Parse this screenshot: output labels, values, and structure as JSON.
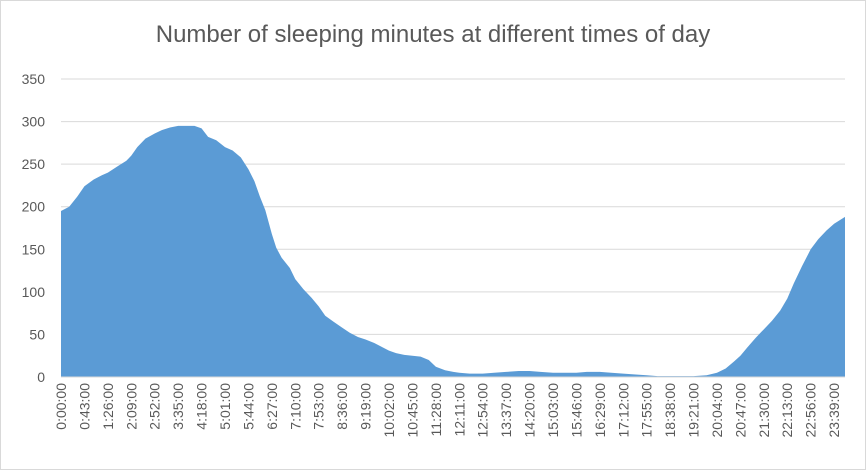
{
  "chart_data": {
    "type": "area",
    "title": "Number of sleeping minutes at different times of day",
    "xlabel": "",
    "ylabel": "",
    "ylim": [
      0,
      350
    ],
    "y_ticks": [
      "0",
      "50",
      "100",
      "150",
      "200",
      "250",
      "300",
      "350"
    ],
    "grid": true,
    "legend": "none",
    "color": "#5B9BD5",
    "x_tick_labels": [
      "0:00:00",
      "0:43:00",
      "1:26:00",
      "2:09:00",
      "2:52:00",
      "3:35:00",
      "4:18:00",
      "5:01:00",
      "5:44:00",
      "6:27:00",
      "7:10:00",
      "7:53:00",
      "8:36:00",
      "9:19:00",
      "10:02:00",
      "10:45:00",
      "11:28:00",
      "12:11:00",
      "12:54:00",
      "13:37:00",
      "14:20:00",
      "15:03:00",
      "15:46:00",
      "16:29:00",
      "17:12:00",
      "17:55:00",
      "18:38:00",
      "19:21:00",
      "20:04:00",
      "20:47:00",
      "21:30:00",
      "22:13:00",
      "22:56:00",
      "23:39:00"
    ],
    "series": [
      {
        "x": [
          "0:00:00",
          "0:15:00",
          "0:30:00",
          "0:43:00",
          "1:00:00",
          "1:15:00",
          "1:26:00",
          "1:45:00",
          "2:00:00",
          "2:09:00",
          "2:20:00",
          "2:35:00",
          "2:52:00",
          "3:05:00",
          "3:20:00",
          "3:35:00",
          "3:50:00",
          "4:05:00",
          "4:18:00",
          "4:30:00",
          "4:45:00",
          "5:01:00",
          "5:15:00",
          "5:30:00",
          "5:44:00",
          "5:55:00",
          "6:05:00",
          "6:15:00",
          "6:27:00",
          "6:35:00",
          "6:45:00",
          "7:00:00",
          "7:10:00",
          "7:25:00",
          "7:40:00",
          "7:53:00",
          "8:05:00",
          "8:20:00",
          "8:36:00",
          "8:50:00",
          "9:05:00",
          "9:19:00",
          "9:35:00",
          "9:50:00",
          "10:02:00",
          "10:15:00",
          "10:30:00",
          "10:45:00",
          "11:00:00",
          "11:15:00",
          "11:28:00",
          "11:45:00",
          "12:00:00",
          "12:11:00",
          "12:30:00",
          "12:54:00",
          "13:15:00",
          "13:37:00",
          "14:00:00",
          "14:20:00",
          "14:40:00",
          "15:03:00",
          "15:25:00",
          "15:46:00",
          "16:05:00",
          "16:29:00",
          "16:50:00",
          "17:12:00",
          "17:35:00",
          "17:55:00",
          "18:15:00",
          "18:38:00",
          "19:00:00",
          "19:21:00",
          "19:45:00",
          "20:04:00",
          "20:20:00",
          "20:35:00",
          "20:47:00",
          "21:00:00",
          "21:15:00",
          "21:30:00",
          "21:45:00",
          "22:00:00",
          "22:13:00",
          "22:25:00",
          "22:40:00",
          "22:56:00",
          "23:10:00",
          "23:25:00",
          "23:39:00",
          "23:59:00"
        ],
        "values": [
          195,
          200,
          212,
          224,
          232,
          237,
          240,
          248,
          254,
          260,
          270,
          280,
          286,
          290,
          293,
          295,
          295,
          295,
          292,
          282,
          278,
          270,
          266,
          258,
          244,
          230,
          212,
          196,
          168,
          152,
          140,
          128,
          115,
          103,
          93,
          83,
          72,
          65,
          58,
          52,
          47,
          44,
          40,
          35,
          31,
          28,
          26,
          25,
          24,
          20,
          12,
          8,
          6,
          5,
          4,
          4,
          5,
          6,
          7,
          7,
          6,
          5,
          5,
          5,
          6,
          6,
          5,
          4,
          3,
          2,
          1,
          1,
          1,
          1,
          2,
          5,
          10,
          18,
          25,
          35,
          46,
          56,
          66,
          78,
          92,
          110,
          130,
          150,
          162,
          172,
          180,
          188
        ]
      }
    ]
  }
}
